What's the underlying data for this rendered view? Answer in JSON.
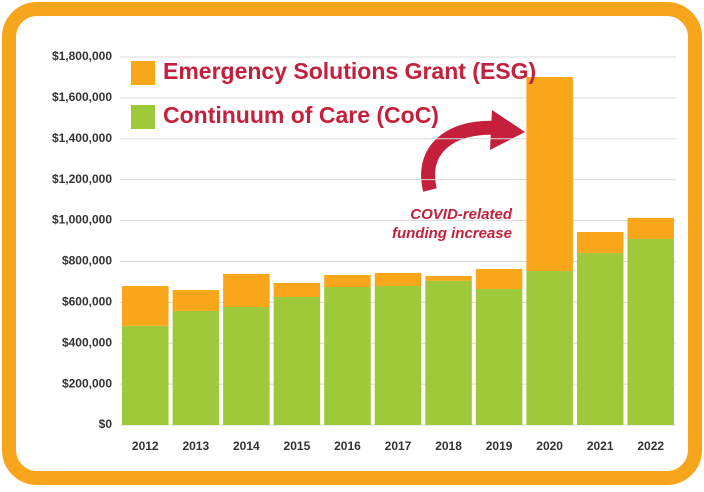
{
  "chart_data": {
    "type": "stacked_bar",
    "categories": [
      "2012",
      "2013",
      "2014",
      "2015",
      "2016",
      "2017",
      "2018",
      "2019",
      "2020",
      "2021",
      "2022"
    ],
    "series": [
      {
        "name": "Continuum of Care (CoC)",
        "color": "#9dc93b",
        "values": [
          485000,
          558000,
          577000,
          626000,
          675000,
          680000,
          705000,
          665000,
          753000,
          841000,
          910000
        ]
      },
      {
        "name": "Emergency Solutions Grant (ESG)",
        "color": "#f9a61a",
        "values": [
          195000,
          102000,
          162000,
          69000,
          59000,
          64000,
          24000,
          98000,
          949000,
          103000,
          103000
        ]
      }
    ],
    "ylim": [
      0,
      1800000
    ],
    "yticks": [
      {
        "value": 0,
        "label": "$0"
      },
      {
        "value": 200000,
        "label": "$200,000"
      },
      {
        "value": 400000,
        "label": "$400,000"
      },
      {
        "value": 600000,
        "label": "$600,000"
      },
      {
        "value": 800000,
        "label": "$800,000"
      },
      {
        "value": 1000000,
        "label": "$1,000,000"
      },
      {
        "value": 1200000,
        "label": "$1,200,000"
      },
      {
        "value": 1400000,
        "label": "$1,400,000"
      },
      {
        "value": 1600000,
        "label": "$1,600,000"
      },
      {
        "value": 1800000,
        "label": "$1,800,000"
      }
    ],
    "grid": true,
    "legend": "top-left",
    "annotation": [
      "COVID-related",
      "funding increase"
    ]
  }
}
